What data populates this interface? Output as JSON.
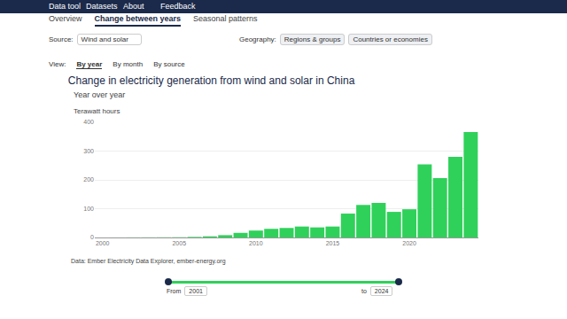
{
  "page": {
    "nav": [
      "Data tool",
      "Datasets",
      "About",
      "Feedback"
    ],
    "tabs": [
      "Overview",
      "Change between years",
      "Seasonal patterns"
    ],
    "active_tab": "Change between years",
    "source_label": "Source:",
    "source": "Wind and solar",
    "geography_label": "Geography:",
    "geography": [
      "Regions & groups",
      "Countries or economies"
    ],
    "view_label": "View:",
    "views": [
      "By year",
      "By month",
      "By source"
    ],
    "active_view": "By year",
    "data_note": "Data: Ember Electricity Data Explorer, ember-energy.org",
    "from_label": "From",
    "from": "2001",
    "to_label": "to",
    "to": "2024"
  },
  "chart_data": {
    "type": "bar",
    "title": "Change in electricity generation from wind and solar in China",
    "subtitle": "Year over year",
    "y_label": "Terawatt hours",
    "x": [
      2001,
      2002,
      2003,
      2004,
      2005,
      2006,
      2007,
      2008,
      2009,
      2010,
      2011,
      2012,
      2013,
      2014,
      2015,
      2016,
      2017,
      2018,
      2019,
      2020,
      2021,
      2022,
      2023,
      2024
    ],
    "values": [
      0.2,
      0.3,
      0.4,
      0.6,
      0.8,
      2,
      4,
      8,
      16,
      24,
      30,
      33,
      38,
      35,
      38,
      83,
      113,
      120,
      89,
      98,
      254,
      206,
      280,
      366
    ],
    "color": "#2fd15a",
    "xlim": [
      1999.5,
      2024.5
    ],
    "xticks": [
      2000,
      2005,
      2010,
      2015,
      2020
    ],
    "ylim": [
      0,
      400
    ],
    "yticks": [
      0,
      100,
      200,
      300,
      400
    ],
    "grid": true
  }
}
